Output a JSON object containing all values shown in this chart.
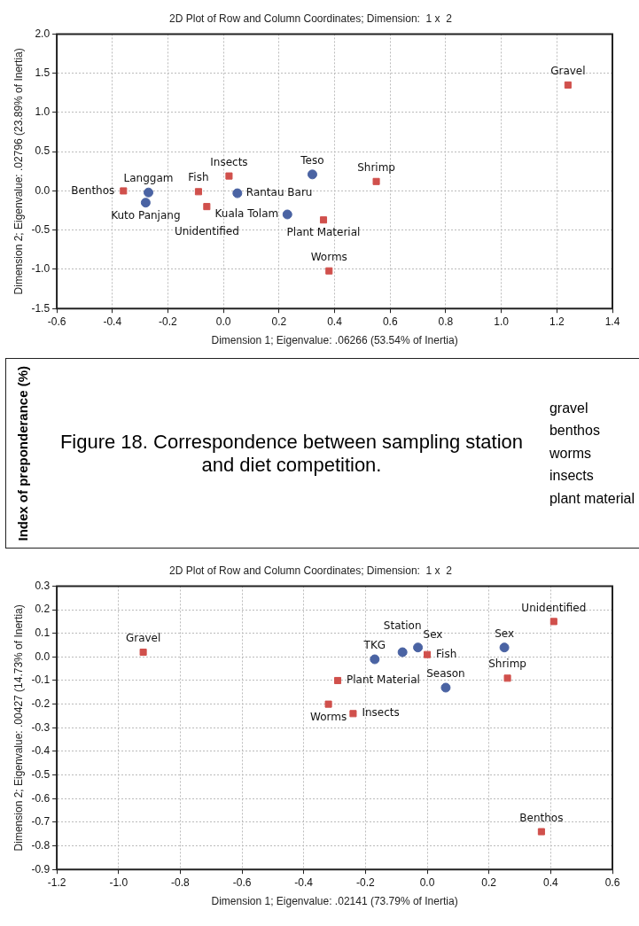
{
  "chart_data": [
    {
      "type": "scatter",
      "title": "2D Plot of Row and Column Coordinates; Dimension:  1 x  2",
      "xlabel": "Dimension 1; Eigenvalue: .06266 (53.54% of Inertia)",
      "ylabel": "Dimension 2; Eigenvalue: .02796 (23.89% of Inertia)",
      "xlim": [
        -0.6,
        1.4
      ],
      "xticks": [
        -0.6,
        -0.4,
        -0.2,
        {
          "value": 0,
          "label": "0.0"
        },
        0.2,
        0.4,
        0.6,
        0.8,
        {
          "value": 1,
          "label": "1.0"
        },
        1.2,
        1.4
      ],
      "ylim": [
        -1.5,
        2.0
      ],
      "yticks": [
        -1.5,
        {
          "value": -1,
          "label": "-1.0"
        },
        -0.5,
        {
          "value": 0,
          "label": "0.0"
        },
        0.5,
        {
          "value": 1,
          "label": "1.0"
        },
        1.5,
        {
          "value": 2,
          "label": "2.0"
        }
      ],
      "grid": true,
      "legend": false,
      "series": [
        {
          "marker": "circle",
          "color": "#4a63a3",
          "x": [
            -0.27,
            -0.28,
            0.05,
            0.32,
            0.23
          ],
          "values": [
            -0.02,
            -0.15,
            -0.03,
            0.21,
            -0.3
          ],
          "value_labels": [
            "Langgam",
            "Kuto Panjang",
            "Rantau Baru",
            "Teso",
            "Kuala Tolam"
          ]
        },
        {
          "marker": "square",
          "color": "#d0504c",
          "x": [
            -0.36,
            -0.09,
            0.02,
            -0.06,
            0.55,
            0.36,
            0.38,
            1.24
          ],
          "values": [
            0.0,
            -0.01,
            0.19,
            -0.2,
            0.12,
            -0.37,
            -1.02,
            1.35
          ],
          "value_labels": [
            "Benthos",
            "Fish",
            "Insects",
            "Unidentified",
            "Shrimp",
            "Plant Material",
            "Worms",
            "Gravel"
          ]
        }
      ]
    },
    {
      "type": "other",
      "title": "Figure 18. Correspondence between sampling station and diet competition.",
      "ylabel": "Index of preponderance (%)",
      "annotations": [
        "gravel",
        "benthos",
        "worms",
        "insects",
        "plant material"
      ]
    },
    {
      "type": "scatter",
      "title": "2D Plot of Row and Column Coordinates; Dimension:  1 x  2",
      "xlabel": "Dimension 1; Eigenvalue: .02141 (73.79% of Inertia)",
      "ylabel": "Dimension 2; Eigenvalue: .00427 (14.73% of Inertia)",
      "xlim": [
        -1.2,
        0.6
      ],
      "xticks": [
        -1.2,
        {
          "value": -1,
          "label": "-1.0"
        },
        -0.8,
        -0.6,
        -0.4,
        -0.2,
        {
          "value": 0,
          "label": "0.0"
        },
        0.2,
        0.4,
        0.6
      ],
      "ylim": [
        -0.9,
        0.3
      ],
      "yticks": [
        -0.9,
        -0.8,
        -0.7,
        -0.6,
        -0.5,
        -0.4,
        -0.3,
        -0.2,
        -0.1,
        {
          "value": 0,
          "label": "0.0"
        },
        0.1,
        0.2,
        0.3
      ],
      "grid": true,
      "legend": false,
      "series": [
        {
          "marker": "circle",
          "color": "#4a63a3",
          "x": [
            -0.17,
            -0.08,
            -0.03,
            0.25,
            0.06
          ],
          "values": [
            -0.01,
            0.02,
            0.04,
            0.04,
            -0.13
          ],
          "value_labels": [
            "TKG",
            "Station",
            "Sex",
            "Sex",
            "Season"
          ]
        },
        {
          "marker": "square",
          "color": "#d0504c",
          "x": [
            -0.92,
            0.0,
            -0.29,
            -0.32,
            -0.24,
            0.26,
            0.41,
            0.37
          ],
          "values": [
            0.02,
            0.01,
            -0.1,
            -0.2,
            -0.24,
            -0.09,
            0.15,
            -0.74
          ],
          "value_labels": [
            "Gravel",
            "Fish",
            "Plant Material",
            "Worms",
            "Insects",
            "Shrimp",
            "Unidentified",
            "Benthos"
          ]
        }
      ]
    }
  ]
}
